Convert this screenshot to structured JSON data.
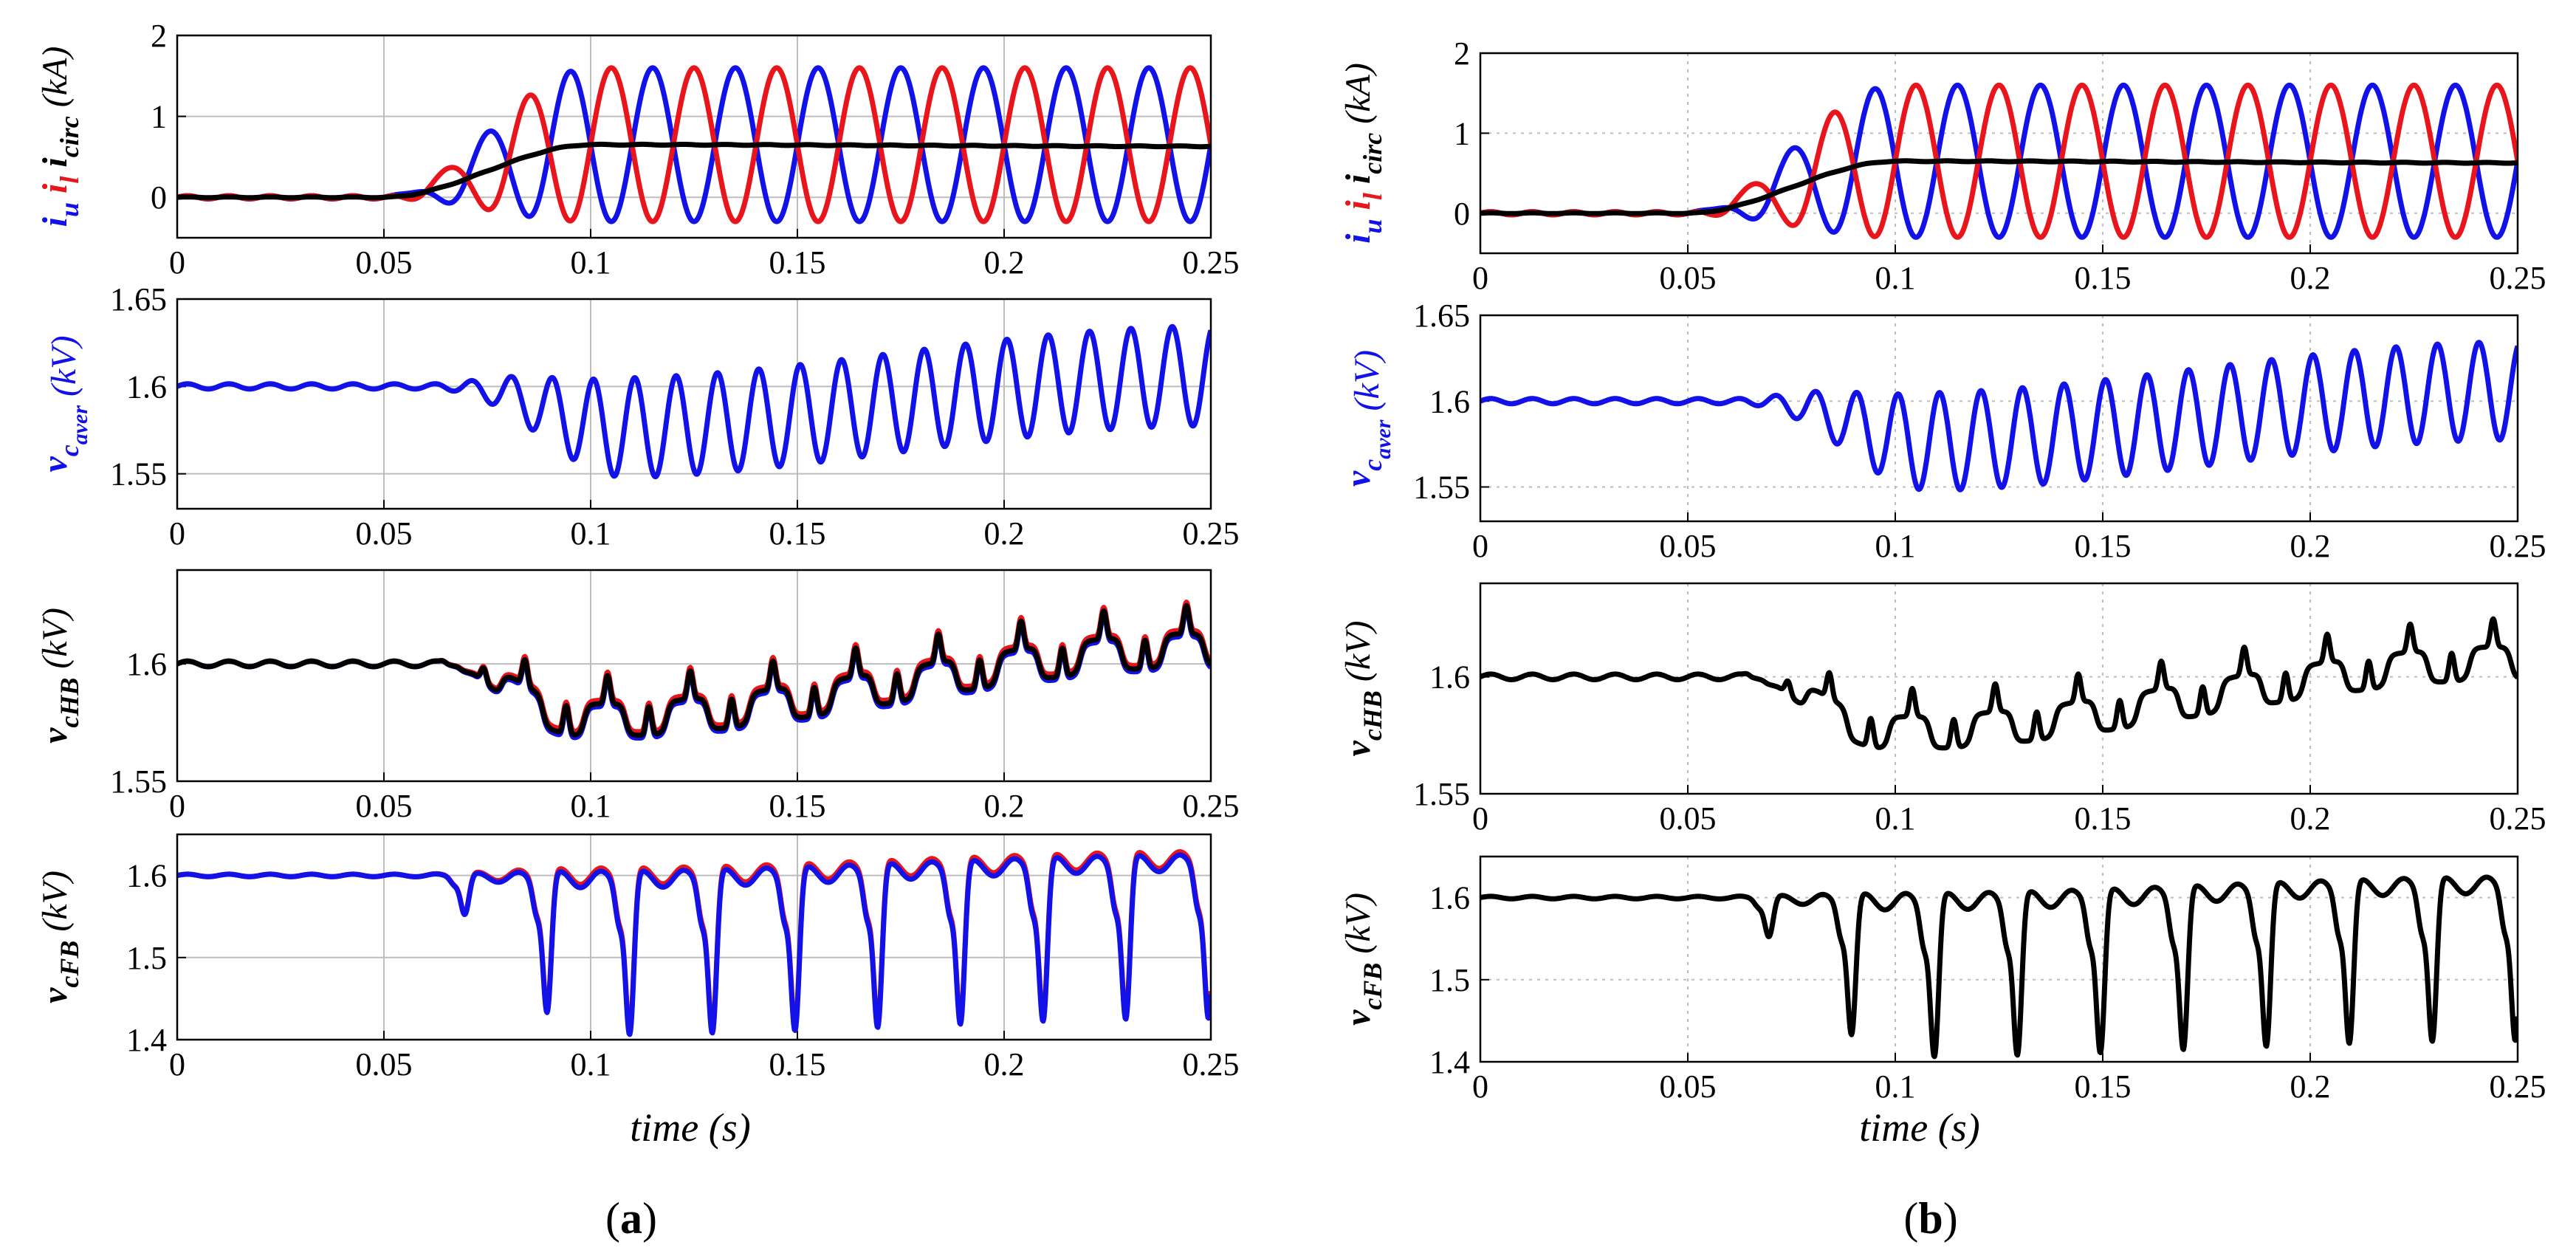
{
  "colors": {
    "red": "#e8161c",
    "blue": "#1212e8",
    "black": "#000000",
    "grid": "#bdbdbd"
  },
  "captions": {
    "a": {
      "open": "(",
      "letter": "a",
      "close": ")"
    },
    "b": {
      "open": "(",
      "letter": "b",
      "close": ")"
    }
  },
  "xlabel": "time (s)",
  "chart_data": [
    {
      "id": "a1",
      "type": "line",
      "figure": "a",
      "ylabel_parts": [
        {
          "text": "i",
          "sub": "u",
          "color": "blue"
        },
        {
          "text": "i",
          "sub": "l",
          "color": "red"
        },
        {
          "text": "i",
          "sub": "circ",
          "color": "black"
        },
        {
          "text": " (kA)",
          "sub": "",
          "color": "black"
        }
      ],
      "xlim": [
        0,
        0.25
      ],
      "ylim": [
        -0.5,
        2
      ],
      "xticks": [
        "0",
        "0.05",
        "0.1",
        "0.15",
        "0.2",
        "0.25"
      ],
      "yticks": [
        "0",
        "1",
        "2"
      ],
      "series": [
        {
          "name": "i_u",
          "color": "blue",
          "model": "current",
          "params": {
            "phase": 0,
            "amp": 0.95,
            "offset": 0.65,
            "f": 50,
            "t0": 0.05,
            "t1": 0.1
          }
        },
        {
          "name": "i_l",
          "color": "red",
          "model": "current",
          "params": {
            "phase": 3.14159,
            "amp": 0.95,
            "offset": 0.65,
            "f": 50,
            "t0": 0.05,
            "t1": 0.1
          }
        },
        {
          "name": "i_circ",
          "color": "black",
          "model": "circ",
          "params": {
            "level": 0.65,
            "t0": 0.05,
            "t1": 0.1
          }
        }
      ]
    },
    {
      "id": "a2",
      "type": "line",
      "figure": "a",
      "ylabel_parts": [
        {
          "text": "v",
          "sub": "c",
          "subsub": "aver",
          "color": "blue"
        },
        {
          "text": " (kV)",
          "sub": "",
          "color": "blue"
        }
      ],
      "xlim": [
        0,
        0.25
      ],
      "ylim": [
        1.53,
        1.65
      ],
      "xticks": [
        "0",
        "0.05",
        "0.1",
        "0.15",
        "0.2",
        "0.25"
      ],
      "yticks": [
        "1.55",
        "1.6",
        "1.65"
      ],
      "series": [
        {
          "name": "v_c_aver",
          "color": "blue",
          "model": "aver",
          "params": {
            "base": 1.6
          }
        }
      ]
    },
    {
      "id": "a3",
      "type": "line",
      "figure": "a",
      "ylabel_parts": [
        {
          "text": "v",
          "sub": "cHB",
          "color": "black"
        },
        {
          "text": " (kV)",
          "sub": "",
          "color": "black"
        }
      ],
      "xlim": [
        0,
        0.25
      ],
      "ylim": [
        1.55,
        1.64
      ],
      "xticks": [
        "0",
        "0.05",
        "0.1",
        "0.15",
        "0.2",
        "0.25"
      ],
      "yticks": [
        "1.55",
        "1.6"
      ],
      "series": [
        {
          "name": "v_cHB_red",
          "color": "red",
          "model": "hb",
          "params": {
            "shift": 0.0015
          }
        },
        {
          "name": "v_cHB_blue",
          "color": "blue",
          "model": "hb",
          "params": {
            "shift": -0.0012
          }
        },
        {
          "name": "v_cHB_black",
          "color": "black",
          "model": "hb",
          "params": {
            "shift": 0
          }
        }
      ]
    },
    {
      "id": "a4",
      "type": "line",
      "figure": "a",
      "ylabel_parts": [
        {
          "text": "v",
          "sub": "cFB",
          "color": "black"
        },
        {
          "text": " (kV)",
          "sub": "",
          "color": "black"
        }
      ],
      "xlim": [
        0,
        0.25
      ],
      "ylim": [
        1.4,
        1.65
      ],
      "xticks": [
        "0",
        "0.05",
        "0.1",
        "0.15",
        "0.2",
        "0.25"
      ],
      "yticks": [
        "1.4",
        "1.5",
        "1.6"
      ],
      "series": [
        {
          "name": "v_cFB_red",
          "color": "red",
          "model": "fb",
          "params": {
            "shift": 0.004
          }
        },
        {
          "name": "v_cFB_blue",
          "color": "blue",
          "model": "fb",
          "params": {
            "shift": 0
          }
        }
      ]
    },
    {
      "id": "b1",
      "type": "line",
      "figure": "b",
      "ylabel_parts": [
        {
          "text": "i",
          "sub": "u",
          "color": "blue"
        },
        {
          "text": "i",
          "sub": "l",
          "color": "red"
        },
        {
          "text": "i",
          "sub": "circ",
          "color": "black"
        },
        {
          "text": " (kA)",
          "sub": "",
          "color": "black"
        }
      ],
      "xlim": [
        0,
        0.25
      ],
      "ylim": [
        -0.5,
        2
      ],
      "xticks": [
        "0",
        "0.05",
        "0.1",
        "0.15",
        "0.2",
        "0.25"
      ],
      "yticks": [
        "0",
        "1",
        "2"
      ],
      "series": [
        {
          "name": "i_u",
          "color": "blue",
          "model": "current",
          "params": {
            "phase": 0,
            "amp": 0.95,
            "offset": 0.65,
            "f": 50,
            "t0": 0.05,
            "t1": 0.1
          }
        },
        {
          "name": "i_l",
          "color": "red",
          "model": "current",
          "params": {
            "phase": 3.14159,
            "amp": 0.95,
            "offset": 0.65,
            "f": 50,
            "t0": 0.05,
            "t1": 0.1
          }
        },
        {
          "name": "i_circ",
          "color": "black",
          "model": "circ",
          "params": {
            "level": 0.65,
            "t0": 0.05,
            "t1": 0.1
          }
        }
      ]
    },
    {
      "id": "b2",
      "type": "line",
      "figure": "b",
      "ylabel_parts": [
        {
          "text": "v",
          "sub": "c",
          "subsub": "aver",
          "color": "blue"
        },
        {
          "text": " (kV)",
          "sub": "",
          "color": "blue"
        }
      ],
      "xlim": [
        0,
        0.25
      ],
      "ylim": [
        1.53,
        1.65
      ],
      "xticks": [
        "0",
        "0.05",
        "0.1",
        "0.15",
        "0.2",
        "0.25"
      ],
      "yticks": [
        "1.55",
        "1.6",
        "1.65"
      ],
      "series": [
        {
          "name": "v_c_aver",
          "color": "blue",
          "model": "aver",
          "params": {
            "base": 1.6
          }
        }
      ]
    },
    {
      "id": "b3",
      "type": "line",
      "figure": "b",
      "ylabel_parts": [
        {
          "text": "v",
          "sub": "cHB",
          "color": "black"
        },
        {
          "text": " (kV)",
          "sub": "",
          "color": "black"
        }
      ],
      "xlim": [
        0,
        0.25
      ],
      "ylim": [
        1.55,
        1.64
      ],
      "xticks": [
        "0",
        "0.05",
        "0.1",
        "0.15",
        "0.2",
        "0.25"
      ],
      "yticks": [
        "1.55",
        "1.6"
      ],
      "series": [
        {
          "name": "v_cHB",
          "color": "black",
          "model": "hb",
          "params": {
            "shift": 0
          }
        }
      ]
    },
    {
      "id": "b4",
      "type": "line",
      "figure": "b",
      "ylabel_parts": [
        {
          "text": "v",
          "sub": "cFB",
          "color": "black"
        },
        {
          "text": " (kV)",
          "sub": "",
          "color": "black"
        }
      ],
      "xlim": [
        0,
        0.25
      ],
      "ylim": [
        1.4,
        1.65
      ],
      "xticks": [
        "0",
        "0.05",
        "0.1",
        "0.15",
        "0.2",
        "0.25"
      ],
      "yticks": [
        "1.4",
        "1.5",
        "1.6"
      ],
      "series": [
        {
          "name": "v_cFB",
          "color": "black",
          "model": "fb",
          "params": {
            "shift": 0
          }
        }
      ]
    }
  ]
}
